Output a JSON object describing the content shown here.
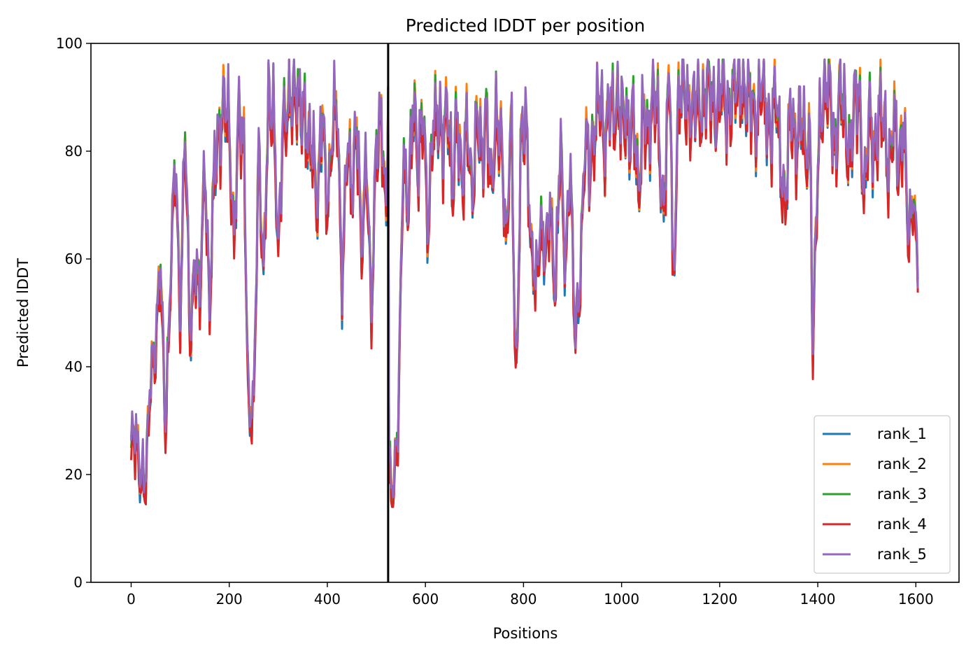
{
  "chart_data": {
    "type": "line",
    "title": "Predicted lDDT per position",
    "xlabel": "Positions",
    "ylabel": "Predicted lDDT",
    "xlim": [
      -82,
      1688
    ],
    "ylim": [
      0,
      100
    ],
    "xticks": [
      0,
      200,
      400,
      600,
      800,
      1000,
      1200,
      1400,
      1600
    ],
    "yticks": [
      0,
      20,
      40,
      60,
      80,
      100
    ],
    "grid": false,
    "legend_position": "lower right",
    "chain_break": 524,
    "series": [
      {
        "name": "rank_1",
        "color": "#1f77b4",
        "offset": -0.6,
        "phase": 1.3
      },
      {
        "name": "rank_2",
        "color": "#ff7f0e",
        "offset": 0.3,
        "phase": 2.1
      },
      {
        "name": "rank_3",
        "color": "#2ca02c",
        "offset": -0.2,
        "phase": 3.7
      },
      {
        "name": "rank_4",
        "color": "#d62728",
        "offset": -1.8,
        "phase": 4.4
      },
      {
        "name": "rank_5",
        "color": "#9467bd",
        "offset": 0.9,
        "phase": 5.9
      }
    ],
    "profile": {
      "x": [
        0,
        10,
        20,
        30,
        40,
        50,
        60,
        70,
        80,
        90,
        100,
        110,
        120,
        130,
        140,
        150,
        160,
        170,
        180,
        190,
        200,
        210,
        220,
        230,
        240,
        250,
        260,
        270,
        280,
        290,
        300,
        310,
        320,
        330,
        340,
        350,
        360,
        370,
        380,
        390,
        400,
        410,
        420,
        430,
        440,
        450,
        460,
        470,
        480,
        490,
        500,
        510,
        520,
        524,
        526,
        535,
        545,
        555,
        565,
        575,
        585,
        595,
        605,
        615,
        625,
        635,
        645,
        655,
        665,
        675,
        685,
        695,
        705,
        715,
        725,
        735,
        745,
        755,
        765,
        775,
        785,
        795,
        805,
        815,
        825,
        835,
        845,
        855,
        865,
        875,
        885,
        895,
        905,
        915,
        925,
        935,
        945,
        955,
        965,
        975,
        985,
        995,
        1005,
        1015,
        1025,
        1035,
        1045,
        1055,
        1065,
        1075,
        1085,
        1095,
        1100,
        1105,
        1115,
        1125,
        1135,
        1145,
        1155,
        1165,
        1175,
        1185,
        1195,
        1205,
        1215,
        1225,
        1235,
        1245,
        1255,
        1265,
        1275,
        1285,
        1295,
        1305,
        1315,
        1325,
        1335,
        1345,
        1355,
        1365,
        1375,
        1385,
        1390,
        1395,
        1405,
        1415,
        1425,
        1435,
        1445,
        1455,
        1465,
        1475,
        1485,
        1495,
        1505,
        1515,
        1525,
        1535,
        1545,
        1555,
        1565,
        1575,
        1585,
        1595,
        1605
      ],
      "y": [
        24,
        28,
        20,
        18,
        40,
        44,
        58,
        30,
        55,
        80,
        50,
        84,
        46,
        60,
        52,
        80,
        50,
        78,
        85,
        88,
        84,
        64,
        86,
        80,
        30,
        32,
        82,
        56,
        88,
        90,
        60,
        86,
        90,
        88,
        92,
        88,
        80,
        84,
        68,
        88,
        70,
        82,
        90,
        55,
        80,
        74,
        86,
        60,
        82,
        48,
        82,
        88,
        66,
        90,
        20,
        18,
        30,
        80,
        70,
        88,
        78,
        90,
        62,
        88,
        86,
        80,
        92,
        70,
        88,
        74,
        84,
        72,
        88,
        76,
        90,
        72,
        86,
        84,
        60,
        88,
        35,
        80,
        88,
        62,
        54,
        68,
        60,
        70,
        54,
        82,
        58,
        80,
        44,
        56,
        82,
        76,
        86,
        90,
        80,
        92,
        84,
        90,
        88,
        80,
        90,
        70,
        88,
        84,
        90,
        86,
        68,
        88,
        92,
        52,
        88,
        92,
        90,
        86,
        90,
        88,
        92,
        90,
        88,
        92,
        88,
        90,
        92,
        94,
        88,
        90,
        86,
        92,
        88,
        84,
        90,
        78,
        70,
        88,
        82,
        86,
        80,
        84,
        40,
        62,
        88,
        92,
        90,
        80,
        92,
        86,
        80,
        88,
        90,
        72,
        86,
        80,
        88,
        84,
        78,
        86,
        76,
        88,
        62,
        72,
        60
      ]
    },
    "legend": [
      "rank_1",
      "rank_2",
      "rank_3",
      "rank_4",
      "rank_5"
    ]
  }
}
